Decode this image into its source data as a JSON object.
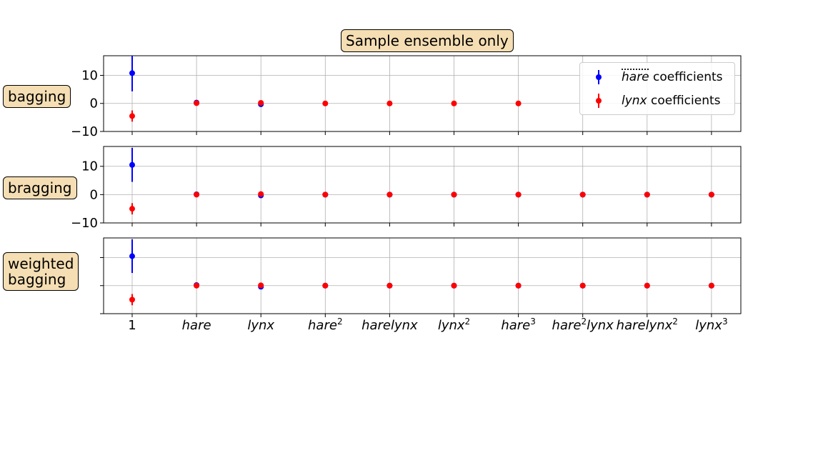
{
  "title": "Sample ensemble only",
  "chart_data": {
    "type": "errorbar",
    "categories": [
      "1",
      "hare",
      "lynx",
      "hare^2",
      "harelynx",
      "lynx^2",
      "hare^3",
      "hare^2lynx",
      "harelynx^2",
      "lynx^3"
    ],
    "ylim": [
      -10,
      17
    ],
    "yticks": [
      -10,
      0,
      10
    ],
    "grid": true,
    "legend": {
      "position": "top-right",
      "entries": [
        {
          "var": "hare",
          "suffix": " coefficients",
          "color": "#0000ff"
        },
        {
          "var": "lynx",
          "suffix": " coefficients",
          "color": "#ff0000"
        }
      ]
    },
    "panels": [
      {
        "label": "bagging",
        "show_ytick_labels": true,
        "series": [
          {
            "name": "hare coefficients",
            "color": "#0000ff",
            "values": [
              10.8,
              0.3,
              -0.3,
              null,
              null,
              null,
              null,
              null,
              null,
              null
            ],
            "errors": [
              6.5,
              0.2,
              0.3,
              null,
              null,
              null,
              null,
              null,
              null,
              null
            ]
          },
          {
            "name": "lynx coefficients",
            "color": "#ff0000",
            "values": [
              -4.5,
              0.1,
              0.2,
              0.0,
              0.0,
              0.0,
              0.0,
              null,
              null,
              null
            ],
            "errors": [
              2.0,
              0.2,
              0.2,
              0.05,
              0.05,
              0.05,
              0.05,
              null,
              null,
              null
            ]
          }
        ]
      },
      {
        "label": "bragging",
        "show_ytick_labels": true,
        "series": [
          {
            "name": "hare coefficients",
            "color": "#0000ff",
            "values": [
              10.5,
              0.1,
              -0.3,
              0.0,
              0.0,
              0.0,
              0.0,
              0.0,
              0.0,
              0.0
            ],
            "errors": [
              6.0,
              0.2,
              0.3,
              0.05,
              0.05,
              0.05,
              0.05,
              0.05,
              0.05,
              0.05
            ]
          },
          {
            "name": "lynx coefficients",
            "color": "#ff0000",
            "values": [
              -5.0,
              0.0,
              0.2,
              0.0,
              0.0,
              0.0,
              0.0,
              0.0,
              0.0,
              0.0
            ],
            "errors": [
              2.0,
              0.2,
              0.2,
              0.05,
              0.05,
              0.05,
              0.05,
              0.05,
              0.05,
              0.05
            ]
          }
        ]
      },
      {
        "label": "weighted\nbagging",
        "show_ytick_labels": false,
        "series": [
          {
            "name": "hare coefficients",
            "color": "#0000ff",
            "values": [
              10.5,
              0.2,
              -0.4,
              0.0,
              0.0,
              0.0,
              0.0,
              0.0,
              0.0,
              0.0
            ],
            "errors": [
              6.0,
              0.2,
              0.3,
              0.05,
              0.05,
              0.05,
              0.05,
              0.05,
              0.05,
              0.05
            ]
          },
          {
            "name": "lynx coefficients",
            "color": "#ff0000",
            "values": [
              -5.0,
              0.0,
              0.1,
              0.0,
              0.0,
              0.0,
              0.0,
              0.0,
              0.0,
              0.0
            ],
            "errors": [
              2.0,
              0.2,
              0.2,
              0.05,
              0.05,
              0.05,
              0.05,
              0.05,
              0.05,
              0.05
            ]
          }
        ]
      }
    ]
  }
}
